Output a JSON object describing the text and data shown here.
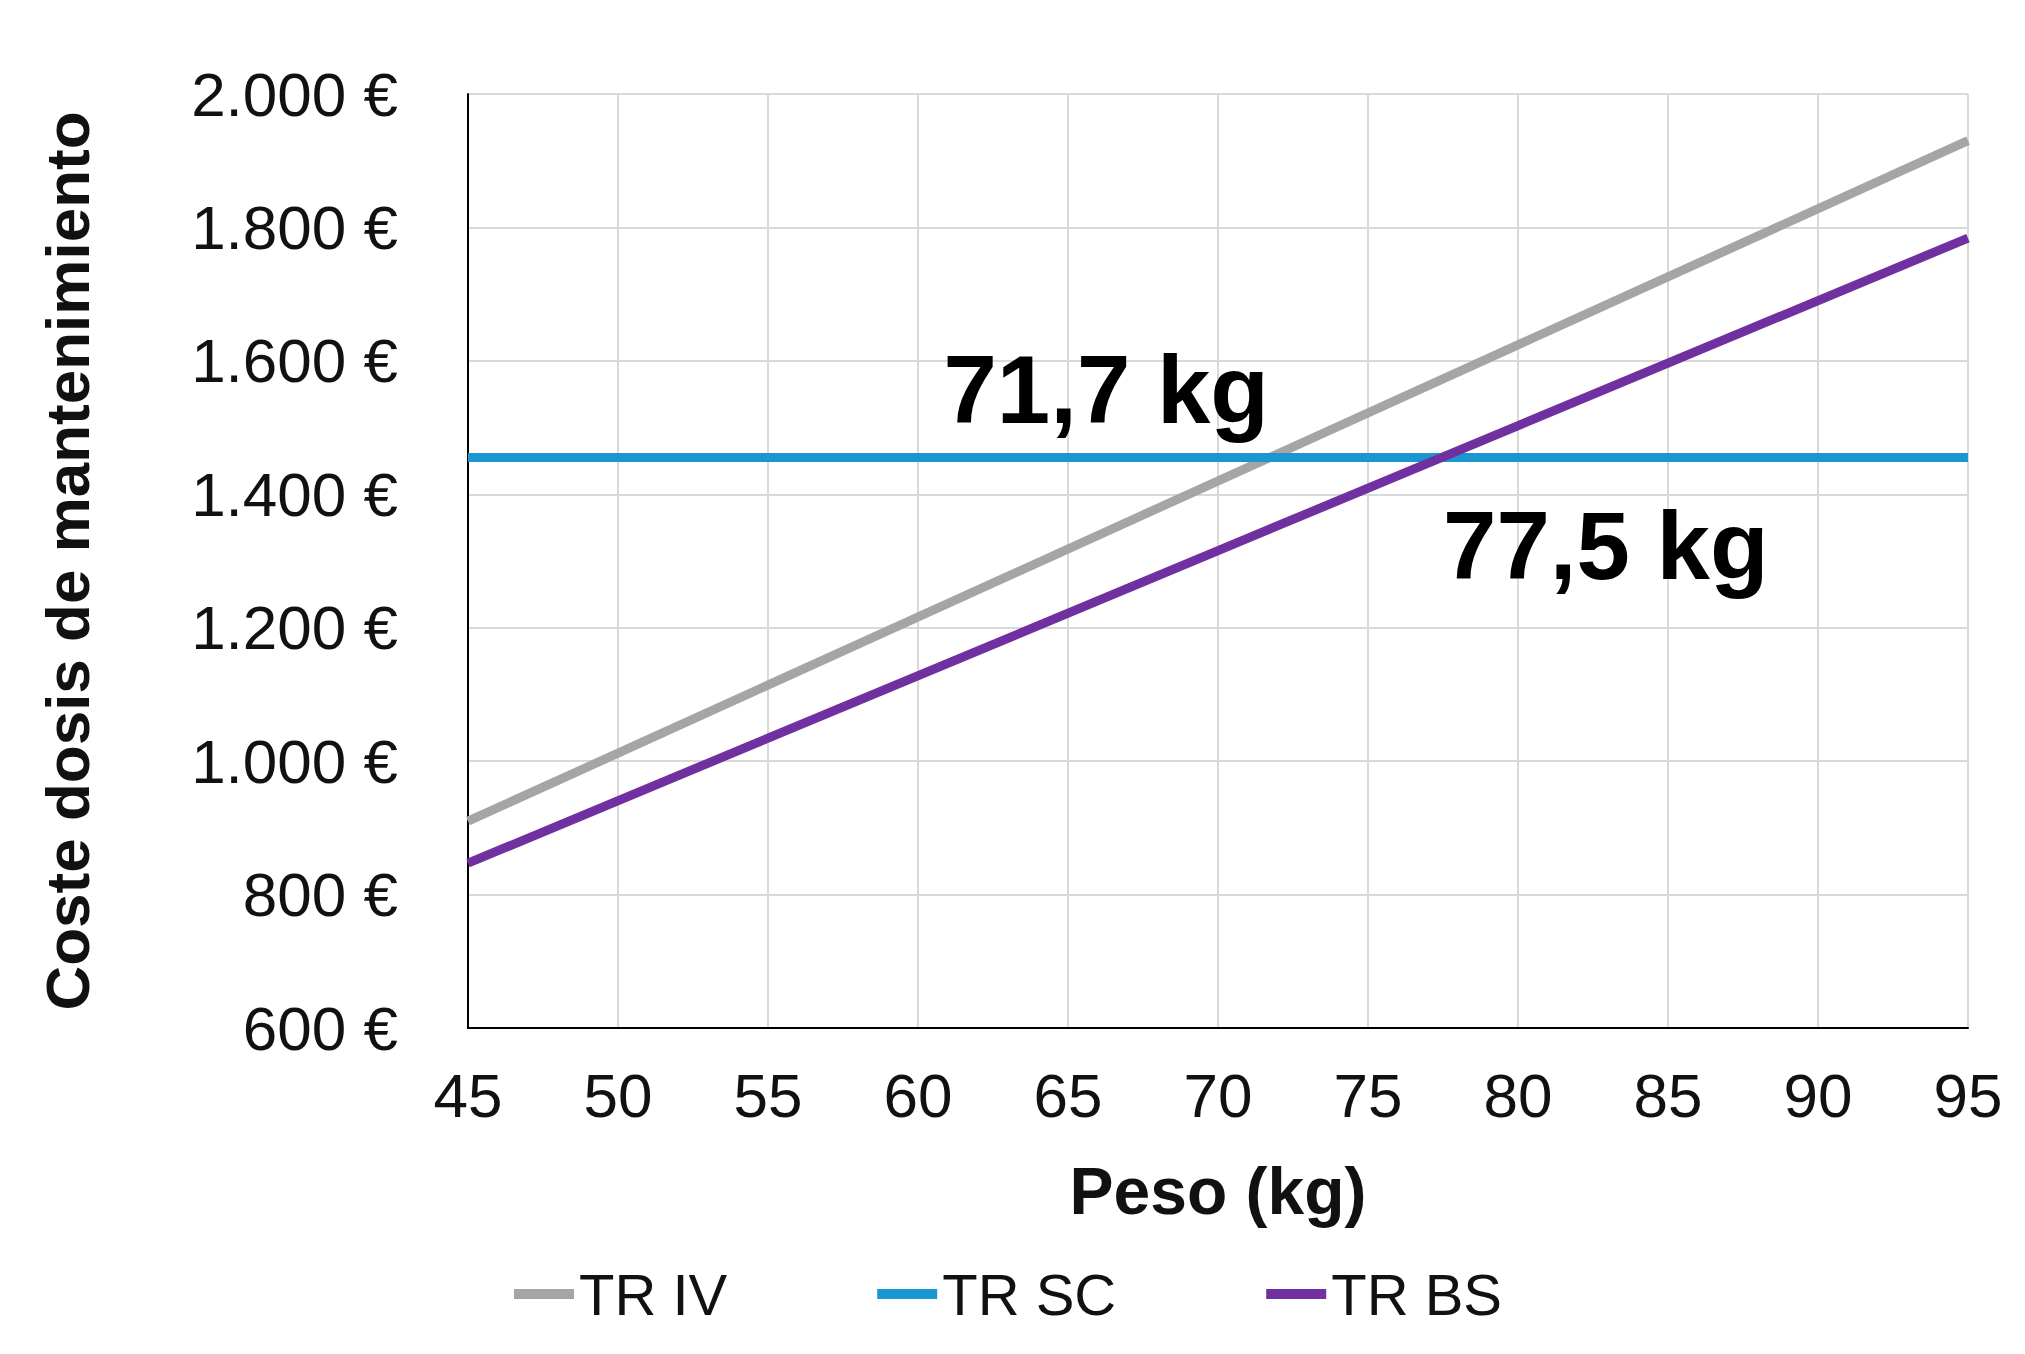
{
  "chart_data": {
    "type": "line",
    "xlabel": "Peso (kg)",
    "ylabel": "Coste dosis de mantenimiento",
    "x": [
      45,
      95
    ],
    "series": [
      {
        "name": "TR IV",
        "color": "#a5a5a5",
        "values": [
          910,
          1930
        ]
      },
      {
        "name": "TR SC",
        "color": "#1a96d0",
        "values": [
          1455,
          1455
        ]
      },
      {
        "name": "TR BS",
        "color": "#7030a0",
        "values": [
          847,
          1784
        ]
      }
    ],
    "xlim": [
      45,
      95
    ],
    "xticks": [
      45,
      50,
      55,
      60,
      65,
      70,
      75,
      80,
      85,
      90,
      95
    ],
    "ylim": [
      600,
      2000
    ],
    "yticks": [
      {
        "value": 600,
        "label": "600 €"
      },
      {
        "value": 800,
        "label": "800 €"
      },
      {
        "value": 1000,
        "label": "1.000 €"
      },
      {
        "value": 1200,
        "label": "1.200 €"
      },
      {
        "value": 1400,
        "label": "1.400 €"
      },
      {
        "value": 1600,
        "label": "1.600 €"
      },
      {
        "value": 1800,
        "label": "1.800 €"
      },
      {
        "value": 2000,
        "label": "2.000 €"
      }
    ],
    "annotations": [
      {
        "text": "71,7 kg",
        "x": 71.7,
        "y": 1455
      },
      {
        "text": "77,5 kg",
        "x": 77.5,
        "y": 1455
      }
    ],
    "grid": true,
    "legend": "bottom",
    "marker": "none",
    "line_style": "solid"
  }
}
